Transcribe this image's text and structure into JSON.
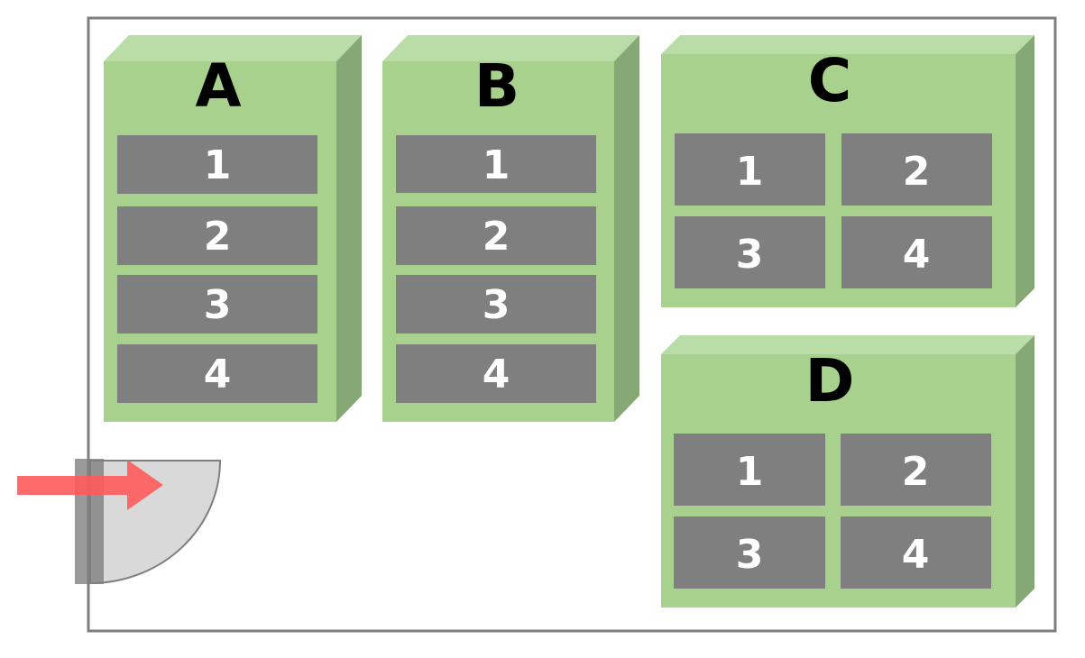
{
  "colors": {
    "frame_border": "#7f7f7f",
    "box_front": "#a9d18e",
    "box_top": "#badca6",
    "box_side": "#85a875",
    "slot_fill": "#7f7f7f",
    "slot_text": "#ffffff",
    "unit_text": "#000000",
    "door_swing": "#d9d9d9",
    "door_leaf": "#7f7f7f",
    "arrow": "#ff5a5a"
  },
  "units": [
    {
      "label": "A",
      "layout": "column",
      "slots": [
        "1",
        "2",
        "3",
        "4"
      ]
    },
    {
      "label": "B",
      "layout": "column",
      "slots": [
        "1",
        "2",
        "3",
        "4"
      ]
    },
    {
      "label": "C",
      "layout": "grid",
      "slots": [
        "1",
        "2",
        "3",
        "4"
      ]
    },
    {
      "label": "D",
      "layout": "grid",
      "slots": [
        "1",
        "2",
        "3",
        "4"
      ]
    }
  ],
  "entrance": {
    "icon": "door-icon",
    "arrow_icon": "entry-arrow-icon"
  }
}
